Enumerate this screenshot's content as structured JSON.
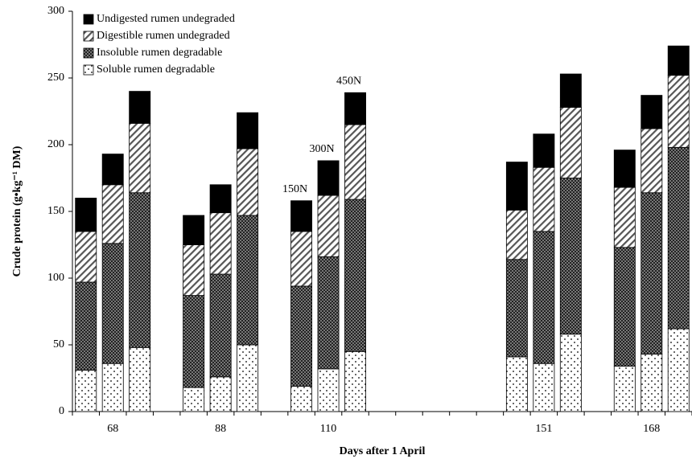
{
  "chart_data": {
    "type": "stacked_bar",
    "x_label": "Days after 1 April",
    "y_label": "Crude protein (g•kg⁻¹ DM)",
    "categories": [
      null,
      "68",
      null,
      null,
      null,
      "88",
      null,
      null,
      null,
      "110",
      null,
      null,
      null,
      null,
      null,
      null,
      null,
      "151",
      null,
      null,
      null,
      "168",
      null
    ],
    "series": [
      {
        "name": "Soluble rumen degradable",
        "color": "#ffffff",
        "pattern": "dots",
        "values": [
          31,
          36,
          48,
          null,
          18,
          26,
          50,
          null,
          19,
          32,
          45,
          null,
          null,
          null,
          null,
          null,
          41,
          36,
          58,
          null,
          34,
          43,
          62
        ]
      },
      {
        "name": "Insoluble rumen degradable",
        "color": "#333333",
        "pattern": "checker",
        "values": [
          66,
          90,
          116,
          null,
          69,
          77,
          97,
          null,
          75,
          84,
          114,
          null,
          null,
          null,
          null,
          null,
          73,
          99,
          117,
          null,
          89,
          121,
          136
        ]
      },
      {
        "name": "Digestible rumen undegraded",
        "color": "#ffffff",
        "pattern": "hatch",
        "values": [
          38,
          44,
          52,
          null,
          38,
          46,
          50,
          null,
          41,
          46,
          56,
          null,
          null,
          null,
          null,
          null,
          37,
          48,
          53,
          null,
          45,
          48,
          54
        ]
      },
      {
        "name": "Undigested rumen undegraded",
        "color": "#000000",
        "pattern": "solid",
        "values": [
          25,
          23,
          24,
          null,
          22,
          21,
          27,
          null,
          23,
          26,
          24,
          null,
          null,
          null,
          null,
          null,
          36,
          25,
          25,
          null,
          28,
          25,
          22
        ]
      }
    ],
    "annotations": [
      "150N",
      "300N",
      "450N"
    ],
    "ylim": [
      0,
      300
    ],
    "yticks": [
      0,
      50,
      100,
      150,
      200,
      250,
      300
    ],
    "legend": "top-left"
  }
}
